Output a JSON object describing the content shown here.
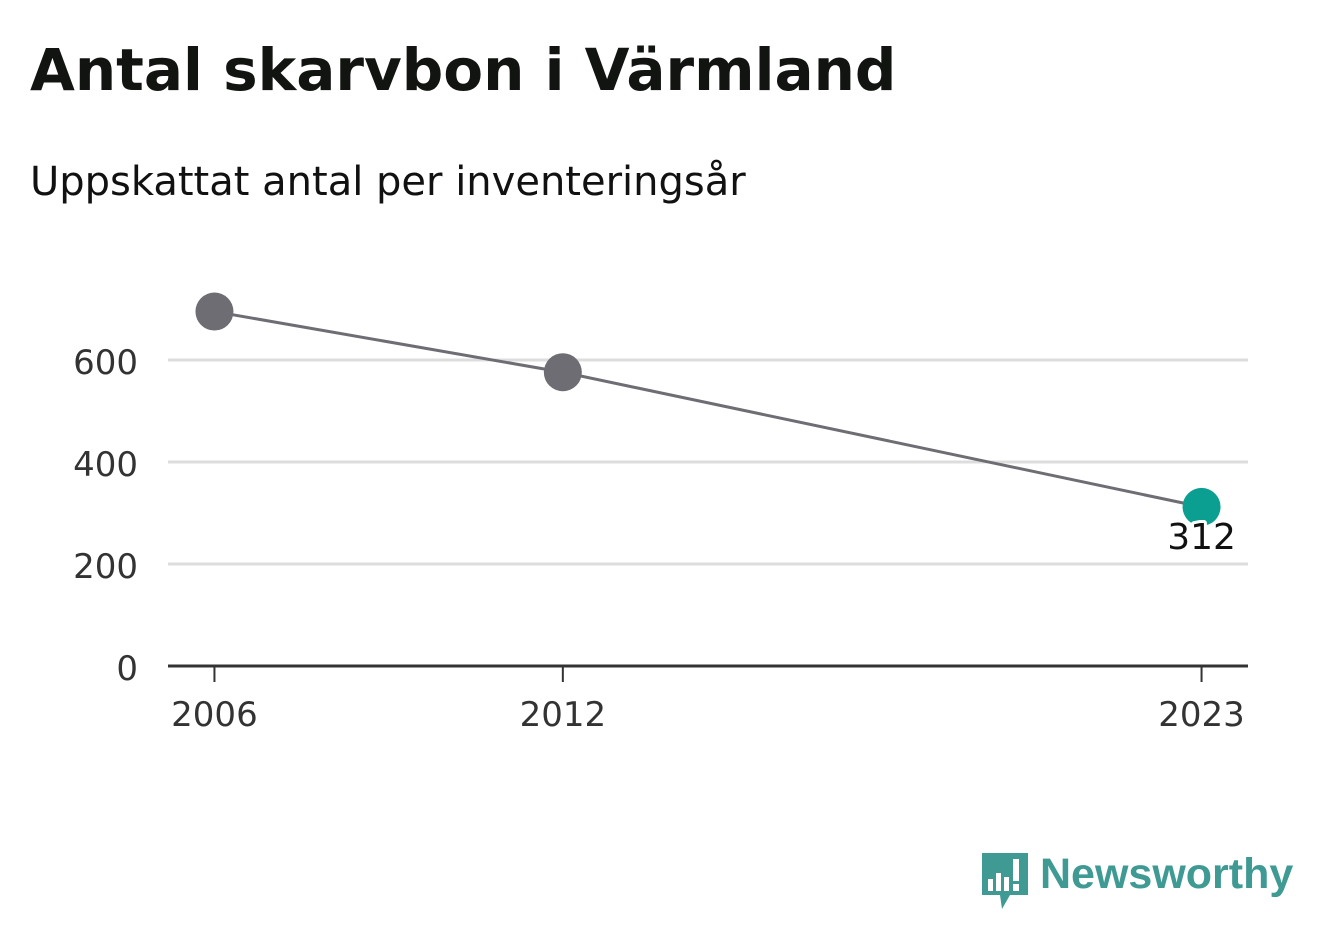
{
  "title": "Antal skarvbon i Värmland",
  "subtitle": "Uppskattat antal per inventeringsår",
  "chart_data": {
    "type": "line",
    "title": "Antal skarvbon i Värmland",
    "subtitle": "Uppskattat antal per inventeringsår",
    "xlabel": "",
    "ylabel": "",
    "x": [
      2006,
      2012,
      2023
    ],
    "values": [
      695,
      576,
      312
    ],
    "xticks": [
      "2006",
      "2012",
      "2023"
    ],
    "yticks": [
      0,
      200,
      400,
      600
    ],
    "ylim": [
      0,
      700
    ],
    "grid": true,
    "highlight": {
      "index": 2,
      "label": "312"
    },
    "colors": {
      "line": "#6e6d73",
      "point": "#6e6d73",
      "highlight": "#0b9f91",
      "grid": "#dddddd",
      "axis": "#333333",
      "tick_text": "#333333"
    }
  },
  "brand": {
    "name": "Newsworthy",
    "icon": "newsworthy-logo-icon",
    "color": "#3f9a94"
  }
}
